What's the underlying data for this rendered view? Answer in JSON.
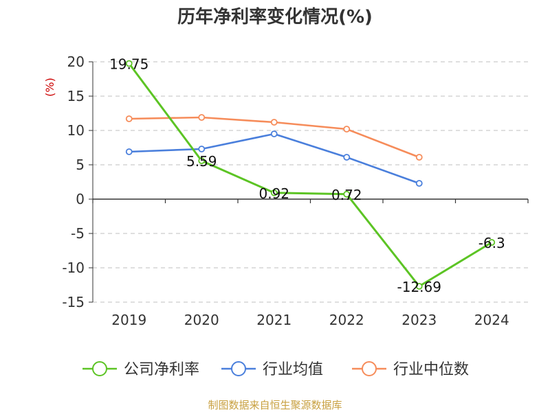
{
  "chart_data": {
    "type": "line",
    "title": "历年净利率变化情况(%)",
    "ylabel": "(%)",
    "xlabel": "",
    "categories": [
      "2019",
      "2020",
      "2021",
      "2022",
      "2023",
      "2024"
    ],
    "ylim": [
      -15,
      20
    ],
    "yticks": [
      20,
      15,
      10,
      5,
      0,
      -5,
      -10,
      -15
    ],
    "grid": true,
    "legend_position": "bottom",
    "series": [
      {
        "name": "公司净利率",
        "color": "#5cc424",
        "values": [
          19.75,
          5.59,
          0.92,
          0.72,
          -12.69,
          -6.3
        ],
        "labels": [
          "19.75",
          "5.59",
          "0.92",
          "0.72",
          "-12.69",
          "-6.3"
        ]
      },
      {
        "name": "行业均值",
        "color": "#4a7fdc",
        "values": [
          6.9,
          7.3,
          9.5,
          6.1,
          2.3,
          null
        ]
      },
      {
        "name": "行业中位数",
        "color": "#f68c5a",
        "values": [
          11.7,
          11.9,
          11.2,
          10.2,
          6.1,
          null
        ]
      }
    ]
  },
  "footer": {
    "source": "制图数据来自恒生聚源数据库"
  }
}
